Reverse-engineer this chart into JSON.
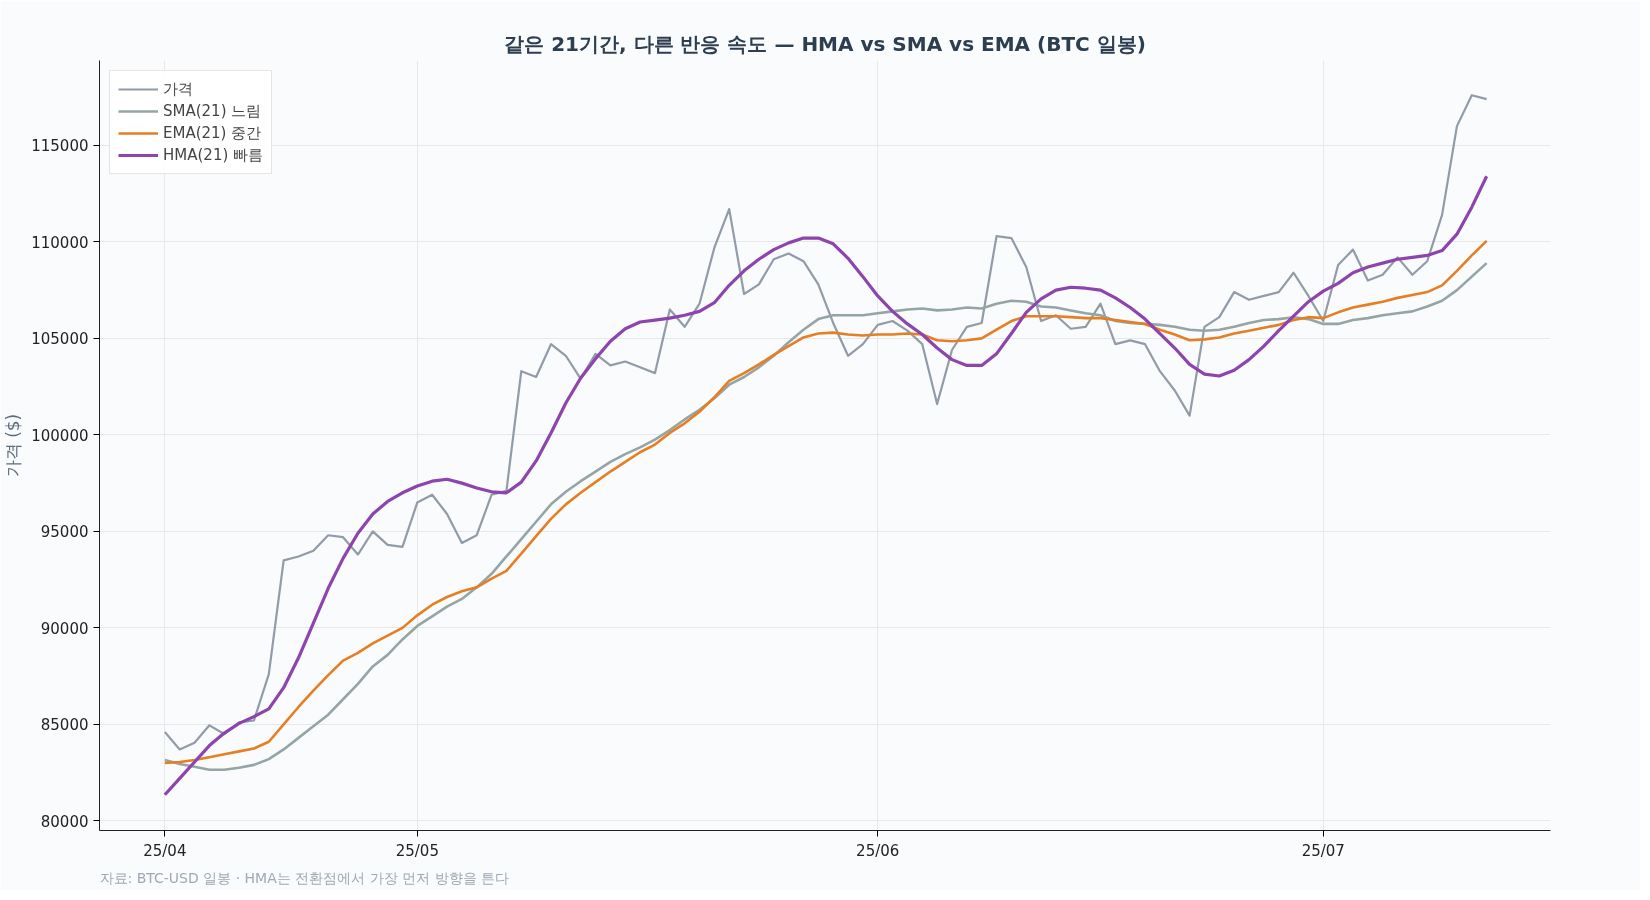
{
  "chart_data": {
    "type": "line",
    "title": "같은 21기간, 다른 반응 속도 — HMA vs SMA vs EMA (BTC 일봉)",
    "ylabel": "가격 ($)",
    "categories": [
      "25/04",
      null,
      null,
      null,
      null,
      null,
      null,
      null,
      null,
      null,
      null,
      null,
      null,
      null,
      null,
      null,
      null,
      "25/05",
      null,
      null,
      null,
      null,
      null,
      null,
      null,
      null,
      null,
      null,
      null,
      null,
      null,
      null,
      null,
      null,
      null,
      null,
      null,
      null,
      null,
      null,
      null,
      null,
      null,
      null,
      null,
      null,
      null,
      null,
      "25/06",
      null,
      null,
      null,
      null,
      null,
      null,
      null,
      null,
      null,
      null,
      null,
      null,
      null,
      null,
      null,
      null,
      null,
      null,
      null,
      null,
      null,
      null,
      null,
      null,
      null,
      null,
      null,
      null,
      null,
      "25/07",
      null,
      null,
      null,
      null,
      null,
      null,
      null,
      null,
      null,
      null,
      null
    ],
    "series": [
      {
        "name": "가격",
        "color": "#919ca8",
        "values": [
          84600,
          83700,
          84050,
          84950,
          84500,
          85100,
          85200,
          87600,
          93500,
          93700,
          94000,
          94800,
          94700,
          93800,
          95000,
          94300,
          94200,
          96500,
          96900,
          95900,
          94400,
          94800,
          96900,
          97100,
          103300,
          103000,
          104700,
          104100,
          102900,
          104200,
          103600,
          103800,
          103500,
          103200,
          106500,
          105600,
          106800,
          109700,
          111700,
          107300,
          107800,
          109100,
          109400,
          109000,
          107800,
          105800,
          104100,
          104700,
          105700,
          105900,
          105400,
          104700,
          101600,
          104400,
          105600,
          105800,
          110300,
          110200,
          108700,
          105900,
          106200,
          105500,
          105600,
          106800,
          104700,
          104900,
          104700,
          103300,
          102300,
          101000,
          105600,
          106100,
          107400,
          107000,
          107200,
          107400,
          108400,
          107200,
          105900,
          108800,
          109600,
          108000,
          108300,
          109200,
          108300,
          109000,
          111400,
          116000,
          117600,
          117400
        ]
      },
      {
        "name": "SMA(21) 느림",
        "color": "#95a5a6",
        "values": [
          83150,
          82950,
          82800,
          82650,
          82650,
          82750,
          82900,
          83200,
          83700,
          84300,
          84900,
          85500,
          86300,
          87100,
          88000,
          88600,
          89400,
          90100,
          90600,
          91100,
          91500,
          92100,
          92800,
          93700,
          94600,
          95500,
          96400,
          97050,
          97600,
          98100,
          98600,
          99000,
          99350,
          99750,
          100250,
          100800,
          101300,
          101900,
          102600,
          103000,
          103500,
          104100,
          104800,
          105450,
          106000,
          106200,
          106200,
          106200,
          106300,
          106400,
          106500,
          106550,
          106450,
          106500,
          106600,
          106550,
          106800,
          106950,
          106900,
          106650,
          106600,
          106450,
          106300,
          106200,
          105900,
          105800,
          105750,
          105700,
          105600,
          105450,
          105400,
          105450,
          105600,
          105800,
          105950,
          106000,
          106100,
          106000,
          105750,
          105750,
          105950,
          106050,
          106200,
          106300,
          106400,
          106650,
          106950,
          107500,
          108200,
          108900
        ]
      },
      {
        "name": "EMA(21) 중간",
        "color": "#e67e22",
        "values": [
          83000,
          83050,
          83150,
          83300,
          83450,
          83600,
          83750,
          84100,
          85000,
          85900,
          86750,
          87550,
          88300,
          88700,
          89200,
          89600,
          90000,
          90650,
          91200,
          91600,
          91900,
          92100,
          92550,
          92950,
          93850,
          94750,
          95650,
          96400,
          97000,
          97550,
          98100,
          98600,
          99100,
          99500,
          100100,
          100600,
          101200,
          101950,
          102800,
          103200,
          103650,
          104150,
          104600,
          105050,
          105250,
          105300,
          105200,
          105150,
          105200,
          105200,
          105250,
          105200,
          104900,
          104850,
          104900,
          105000,
          105450,
          105900,
          106150,
          106150,
          106150,
          106100,
          106050,
          106050,
          105950,
          105850,
          105750,
          105450,
          105200,
          104900,
          104950,
          105050,
          105250,
          105400,
          105550,
          105700,
          105950,
          106100,
          106050,
          106350,
          106600,
          106750,
          106900,
          107100,
          107250,
          107400,
          107750,
          108500,
          109300,
          110050
        ]
      },
      {
        "name": "HMA(21) 빠름",
        "color": "#8e44ad",
        "values": [
          81350,
          82200,
          83050,
          83900,
          84550,
          85050,
          85400,
          85800,
          86900,
          88450,
          90250,
          92050,
          93600,
          94900,
          95900,
          96550,
          97000,
          97350,
          97600,
          97700,
          97500,
          97250,
          97050,
          97000,
          97550,
          98650,
          100100,
          101650,
          102950,
          103950,
          104850,
          105500,
          105850,
          105950,
          106050,
          106200,
          106400,
          106850,
          107750,
          108500,
          109100,
          109600,
          109950,
          110200,
          110200,
          109900,
          109150,
          108200,
          107200,
          106400,
          105750,
          105200,
          104500,
          103900,
          103600,
          103600,
          104200,
          105250,
          106350,
          107050,
          107500,
          107650,
          107600,
          107500,
          107100,
          106600,
          106000,
          105250,
          104500,
          103650,
          103150,
          103050,
          103350,
          103900,
          104600,
          105400,
          106150,
          106900,
          107450,
          107850,
          108400,
          108700,
          108900,
          109100,
          109200,
          109300,
          109550,
          110400,
          111800,
          113400
        ]
      }
    ],
    "ylim": [
      79500,
      119400
    ],
    "yticks": [
      80000,
      85000,
      90000,
      95000,
      100000,
      105000,
      110000,
      115000
    ],
    "grid": true,
    "legend": "top left",
    "line_style": "solid",
    "marker": "none",
    "annotations": [
      "자료: BTC-USD 일봉 · HMA는 전환점에서 가장 먼저 방향을 튼다"
    ]
  }
}
